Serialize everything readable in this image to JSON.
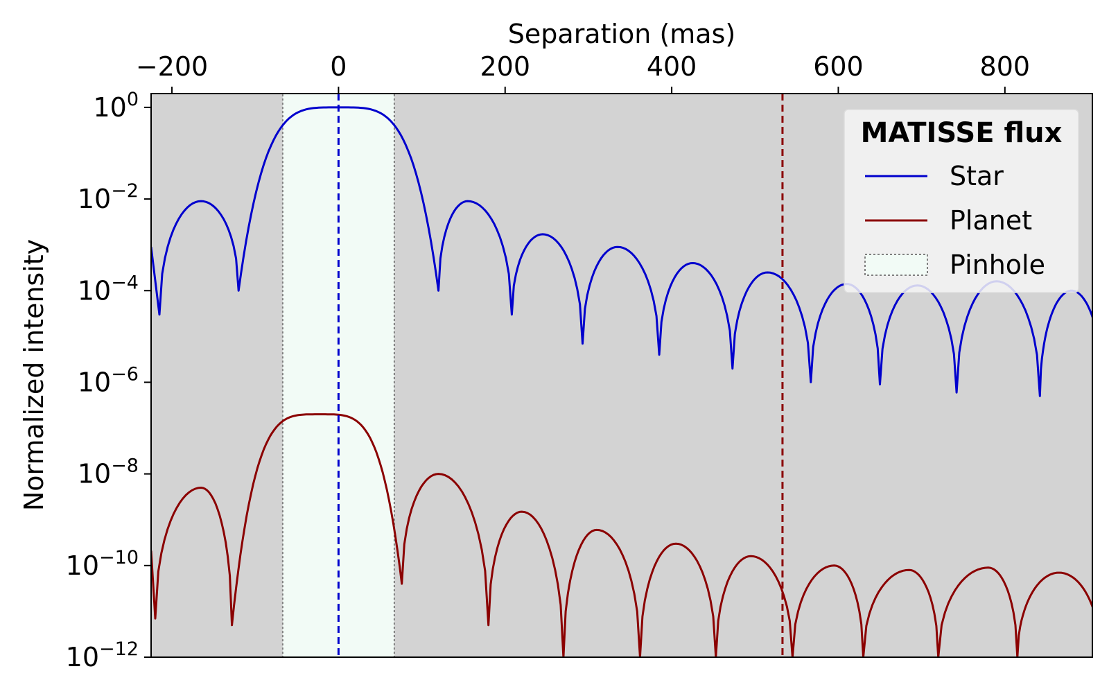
{
  "chart_data": {
    "type": "line",
    "title": "",
    "xlabel": "Separation (mas)",
    "ylabel": "Normalized intensity",
    "x_axis_position": "top",
    "y_scale": "log",
    "xlim": [
      -225,
      905
    ],
    "ylim": [
      1e-12,
      2
    ],
    "x_ticks": [
      -200,
      0,
      200,
      400,
      600,
      800
    ],
    "x_tick_labels": [
      "−200",
      "0",
      "200",
      "400",
      "600",
      "800"
    ],
    "y_ticks": [
      {
        "value": 1,
        "base": "10",
        "exp": "0"
      },
      {
        "value": 0.01,
        "base": "10",
        "exp": "−2"
      },
      {
        "value": 0.0001,
        "base": "10",
        "exp": "−4"
      },
      {
        "value": 1e-06,
        "base": "10",
        "exp": "−6"
      },
      {
        "value": 1e-08,
        "base": "10",
        "exp": "−8"
      },
      {
        "value": 1e-10,
        "base": "10",
        "exp": "−10"
      },
      {
        "value": 1e-12,
        "base": "10",
        "exp": "−12"
      }
    ],
    "grid": false,
    "background_color": "#d3d3d3",
    "legend": {
      "title": "MATISSE flux",
      "placement": "top-right",
      "entries": [
        "Star",
        "Planet",
        "Pinhole"
      ]
    },
    "series": [
      {
        "name": "Star",
        "color": "#0000cd",
        "center": 0,
        "peak": 1,
        "main_lobe_zeros": [
          -120,
          120
        ],
        "sidelobe_period": 90,
        "sidelobe_peaks": [
          {
            "x": -165,
            "y": 0.009
          },
          {
            "x": 155,
            "y": 0.009
          },
          {
            "x": 245,
            "y": 0.0017
          },
          {
            "x": 335,
            "y": 0.0009
          },
          {
            "x": 425,
            "y": 0.0004
          },
          {
            "x": 515,
            "y": 0.00025
          },
          {
            "x": 610,
            "y": 0.00014
          },
          {
            "x": 695,
            "y": 0.00013
          },
          {
            "x": 790,
            "y": 0.00016
          },
          {
            "x": 880,
            "y": 0.0001
          }
        ],
        "nulls": [
          {
            "x": -215,
            "y": 3e-05
          },
          {
            "x": -120,
            "y": 0.0001
          },
          {
            "x": 120,
            "y": 0.0001
          },
          {
            "x": 208,
            "y": 3e-05
          },
          {
            "x": 293,
            "y": 7e-06
          },
          {
            "x": 385,
            "y": 4e-06
          },
          {
            "x": 473,
            "y": 2e-06
          },
          {
            "x": 567,
            "y": 1e-06
          },
          {
            "x": 650,
            "y": 9e-07
          },
          {
            "x": 742,
            "y": 6e-07
          },
          {
            "x": 842,
            "y": 5e-07
          }
        ]
      },
      {
        "name": "Planet",
        "color": "#8b0000",
        "center": -22,
        "peak": 2e-07,
        "main_lobe_zeros": [
          -128,
          76
        ],
        "sidelobe_period": 92,
        "sidelobe_peaks": [
          {
            "x": -165,
            "y": 5e-09
          },
          {
            "x": 120,
            "y": 1e-08
          },
          {
            "x": 220,
            "y": 1.5e-09
          },
          {
            "x": 310,
            "y": 6e-10
          },
          {
            "x": 405,
            "y": 3e-10
          },
          {
            "x": 495,
            "y": 1.6e-10
          },
          {
            "x": 595,
            "y": 1e-10
          },
          {
            "x": 685,
            "y": 8e-11
          },
          {
            "x": 780,
            "y": 9e-11
          },
          {
            "x": 865,
            "y": 7e-11
          }
        ],
        "nulls": [
          {
            "x": -220,
            "y": 7e-12
          },
          {
            "x": -128,
            "y": 5e-12
          },
          {
            "x": 76,
            "y": 4e-11
          },
          {
            "x": 180,
            "y": 5e-12
          },
          {
            "x": 270,
            "y": 1e-12
          },
          {
            "x": 362,
            "y": 1e-12
          },
          {
            "x": 453,
            "y": 1e-12
          },
          {
            "x": 545,
            "y": 1e-12
          },
          {
            "x": 630,
            "y": 1e-12
          },
          {
            "x": 720,
            "y": 1e-12
          },
          {
            "x": 815,
            "y": 1e-12
          }
        ]
      }
    ],
    "pinhole": {
      "name": "Pinhole",
      "x_range": [
        -67,
        67
      ],
      "fill": "#f2fbf6",
      "edge": "#808080"
    },
    "vlines": [
      {
        "x": 0,
        "color": "#0000cd",
        "style": "dashed"
      },
      {
        "x": 533,
        "color": "#8b0000",
        "style": "dashed"
      }
    ]
  }
}
